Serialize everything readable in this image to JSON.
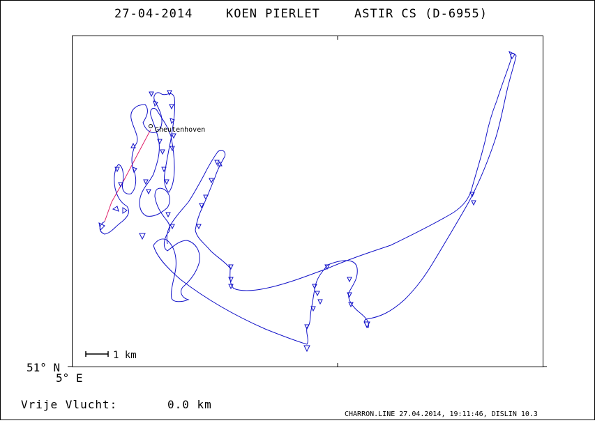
{
  "header": {
    "date": "27-04-2014",
    "pilot": "KOEN PIERLET",
    "glider": "ASTIR CS (D-6955)"
  },
  "map": {
    "origin_lat_label": "51° N",
    "origin_lon_label": "5° E",
    "scale_label": "1 km",
    "waypoint_label": "Gheutenhoven",
    "track_color": "#1010c8",
    "task_line_color": "#e0206a",
    "icons": {
      "turnpoint": "circle-marker-icon",
      "thermal": "triangle-marker-icon"
    }
  },
  "footer": {
    "free_flight_label": "Vrije Vlucht:",
    "free_flight_value": "0.0 km",
    "credits": "CHARRON.LINE 27.04.2014, 19:11:46, DISLIN 10.3"
  }
}
